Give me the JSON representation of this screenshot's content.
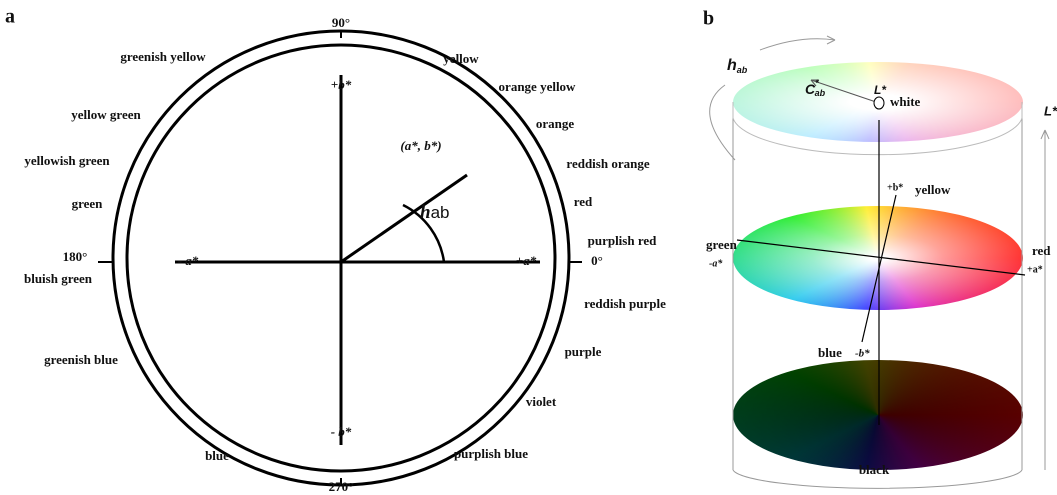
{
  "panel_a": {
    "label": "a",
    "angles": {
      "top": "90°",
      "left": "180°",
      "right": "0°",
      "bottom": "270°"
    },
    "axes": {
      "plus_b": "+b*",
      "minus_a": "- a*",
      "plus_a": "+a*",
      "minus_b": "- b*"
    },
    "point": "(a*, b*)",
    "hue_angle": {
      "symbol": "h",
      "subscript": "ab"
    },
    "hues": [
      "greenish yellow",
      "yellow",
      "orange yellow",
      "yellow green",
      "orange",
      "yellowish green",
      "reddish orange",
      "green",
      "red",
      "purplish red",
      "bluish green",
      "reddish purple",
      "purple",
      "greenish blue",
      "violet",
      "blue",
      "purplish blue"
    ]
  },
  "panel_b": {
    "label": "b",
    "hue": {
      "symbol": "h",
      "subscript": "ab"
    },
    "chroma": {
      "symbol": "C",
      "superscript": "*",
      "subscript": "ab"
    },
    "lightness_point": "L*",
    "lightness_axis": "L*",
    "white": "white",
    "plus_b": "+b*",
    "yellow": "yellow",
    "green": "green",
    "minus_a": "-a*",
    "red": "red",
    "plus_a": "+a*",
    "blue": "blue",
    "minus_b": "-b*",
    "black": "black"
  }
}
